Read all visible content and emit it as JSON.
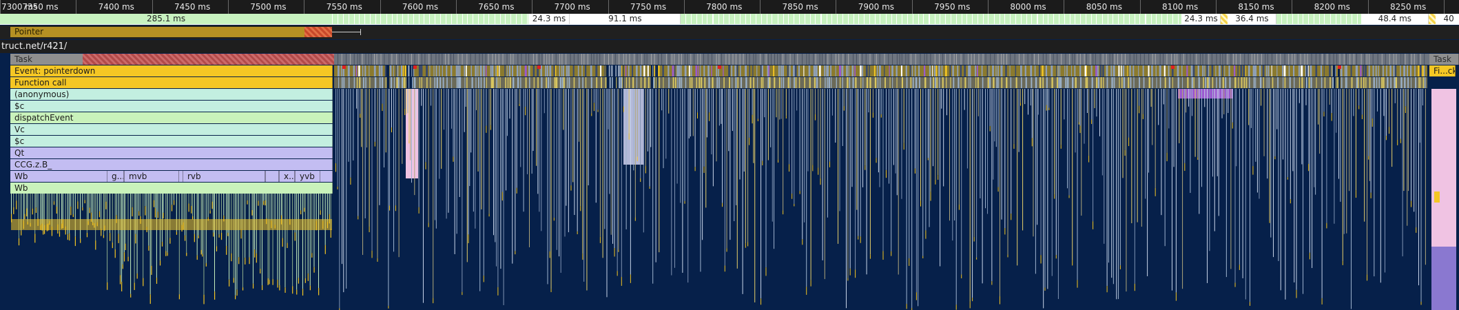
{
  "ruler": {
    "start_ms": 7300,
    "end_ms": 8260,
    "ticks": [
      "7300 ms",
      "7350 ms",
      "7400 ms",
      "7450 ms",
      "7500 ms",
      "7550 ms",
      "7600 ms",
      "7650 ms",
      "7700 ms",
      "7750 ms",
      "7800 ms",
      "7850 ms",
      "7900 ms",
      "7950 ms",
      "8000 ms",
      "8050 ms",
      "8100 ms",
      "8150 ms",
      "8200 ms",
      "8250 ms"
    ]
  },
  "frames": [
    {
      "label": "285.1 ms",
      "start": 7300,
      "end": 7519,
      "kind": "green"
    },
    {
      "label": "",
      "start": 7519,
      "end": 7648,
      "kind": "green-small"
    },
    {
      "label": "24.3 ms",
      "start": 7648,
      "end": 7675,
      "kind": "white"
    },
    {
      "label": "91.1 ms",
      "start": 7675,
      "end": 7748,
      "kind": "white"
    },
    {
      "label": "",
      "start": 7748,
      "end": 8078,
      "kind": "green-small"
    },
    {
      "label": "24.3 ms",
      "start": 8078,
      "end": 8103,
      "kind": "white"
    },
    {
      "label": "",
      "start": 8103,
      "end": 8108,
      "kind": "yellow"
    },
    {
      "label": "36.4 ms",
      "start": 8108,
      "end": 8140,
      "kind": "white"
    },
    {
      "label": "",
      "start": 8140,
      "end": 8196,
      "kind": "green-small"
    },
    {
      "label": "48.4 ms",
      "start": 8196,
      "end": 8240,
      "kind": "white"
    },
    {
      "label": "",
      "start": 8240,
      "end": 8245,
      "kind": "yellow"
    },
    {
      "label": "40",
      "start": 8245,
      "end": 8262,
      "kind": "white"
    }
  ],
  "interactions": {
    "pointer_label": "Pointer"
  },
  "track": {
    "url": "truct.net/r421/"
  },
  "flame": {
    "task_label": "Task",
    "task_label_right": "Task",
    "right_event_label": "Fi...ck",
    "rows": [
      {
        "label": "Event: pointerdown",
        "kind": "event"
      },
      {
        "label": "Function call",
        "kind": "event"
      },
      {
        "label": "(anonymous)",
        "kind": "teal"
      },
      {
        "label": "$c",
        "kind": "teal"
      },
      {
        "label": "dispatchEvent",
        "kind": "green"
      },
      {
        "label": "Vc",
        "kind": "teal"
      },
      {
        "label": "$c",
        "kind": "teal"
      },
      {
        "label": "Qt",
        "kind": "lav"
      },
      {
        "label": "CCG.z.B_",
        "kind": "lav"
      },
      {
        "label": "Wb",
        "kind": "lav"
      },
      {
        "label": "Wb",
        "kind": "green"
      }
    ],
    "wb_children": [
      {
        "label": "g...",
        "start": 155,
        "end": 180
      },
      {
        "label": "mvb",
        "start": 180,
        "end": 260
      },
      {
        "label": "rvb",
        "start": 265,
        "end": 385
      },
      {
        "label": "",
        "start": 385,
        "end": 405
      },
      {
        "label": "x...",
        "start": 405,
        "end": 428
      },
      {
        "label": "yvb",
        "start": 428,
        "end": 465
      }
    ]
  },
  "colors": {
    "background": "#06204a",
    "event": "#f5c724",
    "event_dim": "#8b7a2e",
    "task": "#8f8f8f",
    "teal": "#c3efe0",
    "lavender": "#c3bdf2",
    "green": "#c9f2bb",
    "purple": "#9b59d0",
    "pink": "#f0c3e3",
    "red": "#e02020"
  }
}
